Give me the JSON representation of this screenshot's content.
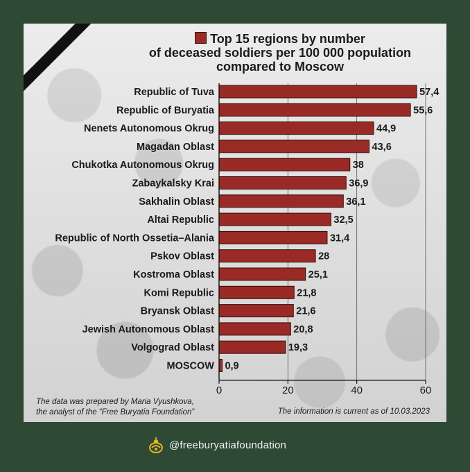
{
  "title_lines": [
    "Top 15 regions by number",
    "of deceased soldiers per 100 000 population",
    "compared to Moscow"
  ],
  "note_left_lines": [
    "The data was prepared by Maria Vyushkova,",
    "the analyst of the “Free Buryatia Foundation”"
  ],
  "note_right": "The information is current as of 10.03.2023",
  "footer_handle": "@freeburyatiafoundation",
  "icons": {
    "ribbon": "mourning-ribbon-icon",
    "emblem": "foundation-emblem-icon"
  },
  "colors": {
    "bar": "#9a2a25",
    "frame": "#2e4a35",
    "emblem": "#e0b81c"
  },
  "chart_data": {
    "type": "bar",
    "orientation": "horizontal",
    "categories": [
      "Republic of Tuva",
      "Republic of Buryatia",
      "Nenets Autonomous Okrug",
      "Magadan Oblast",
      "Chukotka Autonomous Okrug",
      "Zabaykalsky Krai",
      "Sakhalin Oblast",
      "Altai Republic",
      "Republic of North Ossetia–Alania",
      "Pskov Oblast",
      "Kostroma Oblast",
      "Komi Republic",
      "Bryansk Oblast",
      "Jewish Autonomous Oblast",
      "Volgograd Oblast",
      "MOSCOW"
    ],
    "values": [
      57.4,
      55.6,
      44.9,
      43.6,
      38,
      36.9,
      36.1,
      32.5,
      31.4,
      28,
      25.1,
      21.8,
      21.6,
      20.8,
      19.3,
      0.9
    ],
    "value_labels": [
      "57,4",
      "55,6",
      "44,9",
      "43,6",
      "38",
      "36,9",
      "36,1",
      "32,5",
      "31,4",
      "28",
      "25,1",
      "21,8",
      "21,6",
      "20,8",
      "19,3",
      "0,9"
    ],
    "xlim": [
      0,
      60
    ],
    "xticks": [
      0,
      20,
      40,
      60
    ],
    "grid": true,
    "legend": "title"
  }
}
